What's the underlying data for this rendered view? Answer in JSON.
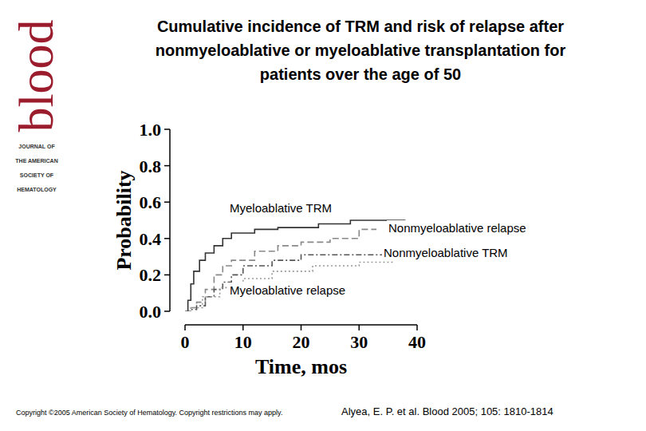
{
  "chart_data": {
    "type": "step",
    "title": [
      "Cumulative incidence of TRM and risk of relapse after",
      "nonmyeloablative or myeloablative transplantation for",
      "patients over the age of 50"
    ],
    "x_label": "Time, mos",
    "y_label": "Probability",
    "xlim": [
      0,
      40
    ],
    "xticks": [
      0,
      10,
      20,
      30,
      40
    ],
    "ylim": [
      0,
      1
    ],
    "yticks": [
      {
        "value": 0,
        "label": "0.0"
      },
      0.2,
      0.4,
      0.6,
      0.8,
      {
        "value": 1,
        "label": "1.0"
      }
    ],
    "series": [
      {
        "name": "Myeloablative TRM",
        "color": "#333333",
        "line_style": "solid",
        "x": [
          0,
          0.5,
          1,
          1.5,
          2.5,
          3.5,
          5,
          6.5,
          8,
          12,
          16,
          23,
          28.5,
          38
        ],
        "values": [
          0,
          0.06,
          0.15,
          0.22,
          0.28,
          0.32,
          0.36,
          0.4,
          0.43,
          0.45,
          0.46,
          0.48,
          0.5,
          0.5
        ]
      },
      {
        "name": "Nonmyeloablative relapse",
        "color": "#888888",
        "line_style": "dashed",
        "x": [
          0,
          1,
          2,
          3.5,
          5,
          6.5,
          8,
          12,
          16,
          20,
          25,
          30,
          33
        ],
        "values": [
          0,
          0.02,
          0.05,
          0.12,
          0.2,
          0.25,
          0.28,
          0.33,
          0.36,
          0.38,
          0.4,
          0.45,
          0.45
        ]
      },
      {
        "name": "Nonmyeloablative TRM",
        "color": "#555555",
        "line_style": "dash-dot",
        "x": [
          0,
          1,
          2,
          3.5,
          5,
          6.5,
          8,
          10,
          15,
          20,
          34
        ],
        "values": [
          0,
          0.01,
          0.03,
          0.08,
          0.12,
          0.16,
          0.2,
          0.25,
          0.28,
          0.31,
          0.31
        ]
      },
      {
        "name": "Myeloablative relapse",
        "color": "#999999",
        "line_style": "dotted",
        "x": [
          0,
          1,
          3,
          6,
          10,
          15,
          22,
          30,
          36
        ],
        "values": [
          0,
          0.02,
          0.08,
          0.13,
          0.18,
          0.22,
          0.25,
          0.27,
          0.27
        ]
      }
    ]
  },
  "page": {
    "logo": {
      "word": "blood",
      "lines": [
        "JOURNAL OF",
        "THE AMERICAN",
        "SOCIETY OF",
        "HEMATOLOGY"
      ]
    },
    "copyright": "Copyright ©2005 American Society of Hematology. Copyright restrictions may apply.",
    "citation": "Alyea, E. P. et al. Blood 2005; 105: 1810-1814"
  }
}
